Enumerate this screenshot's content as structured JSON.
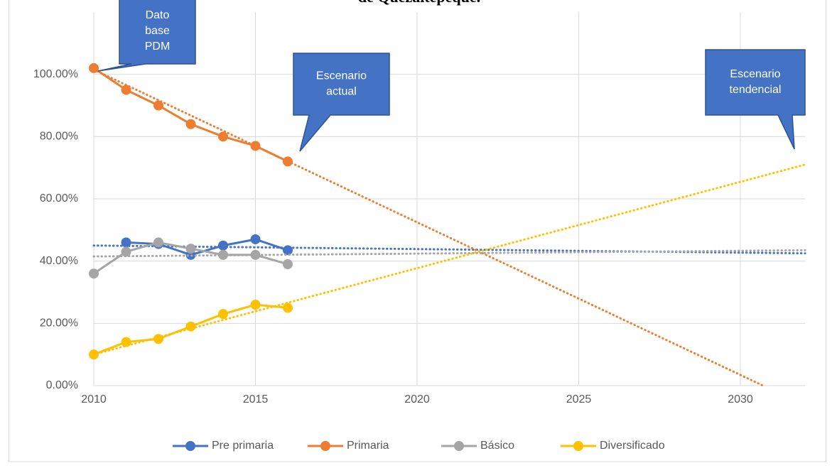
{
  "chart_data": {
    "type": "line",
    "title": "de Quezaltepeque.",
    "x": [
      2010,
      2011,
      2012,
      2013,
      2014,
      2015,
      2016
    ],
    "xlim": [
      2010,
      2032
    ],
    "xticks": [
      2010,
      2015,
      2020,
      2025,
      2030
    ],
    "ylim": [
      0,
      120
    ],
    "yticks": [
      {
        "value": 0,
        "label": "0.00%"
      },
      {
        "value": 20,
        "label": "20.00%"
      },
      {
        "value": 40,
        "label": "40.00%"
      },
      {
        "value": 60,
        "label": "60.00%"
      },
      {
        "value": 80,
        "label": "80.00%"
      },
      {
        "value": 100,
        "label": "100.00%"
      }
    ],
    "grid": true,
    "legend": "bottom",
    "series": [
      {
        "name": "Pre primaria",
        "color": "#4472c4",
        "values": [
          null,
          46,
          45.5,
          42,
          45,
          47,
          43.5
        ],
        "trend": {
          "x": [
            2010,
            2032
          ],
          "values": [
            45,
            42.5
          ]
        }
      },
      {
        "name": "Primaria",
        "color": "#ed7d31",
        "values": [
          102,
          95,
          90,
          84,
          80,
          77,
          72
        ],
        "trend": {
          "x": [
            2010,
            2030.7
          ],
          "values": [
            101.5,
            0
          ]
        }
      },
      {
        "name": "Básico",
        "color": "#a5a5a5",
        "values": [
          36,
          43,
          46,
          44,
          42,
          42,
          39
        ],
        "trend": {
          "x": [
            2010,
            2032
          ],
          "values": [
            41.5,
            43.5
          ]
        }
      },
      {
        "name": "Diversificado",
        "color": "#ffc000",
        "values": [
          10,
          14,
          15,
          19,
          23,
          26,
          25
        ],
        "trend": {
          "x": [
            2010,
            2032
          ],
          "values": [
            10,
            71
          ]
        }
      }
    ],
    "annotations": [
      {
        "lines": [
          "Dato",
          "base",
          "PDM"
        ]
      },
      {
        "lines": [
          "Escenario",
          "actual"
        ]
      },
      {
        "lines": [
          "Escenario",
          "tendencial"
        ]
      }
    ]
  }
}
